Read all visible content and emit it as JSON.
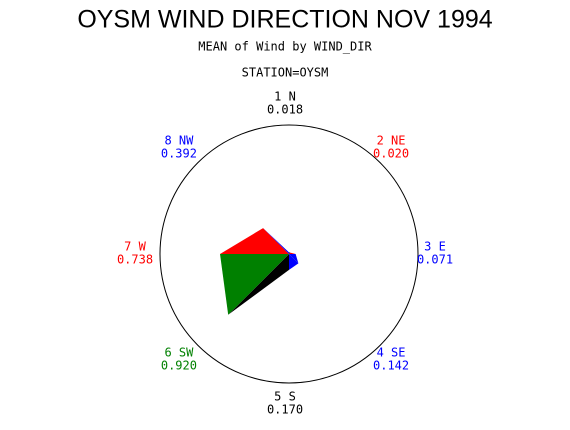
{
  "chart_data": {
    "type": "star",
    "title": "OYSM WIND DIRECTION NOV 1994",
    "subtitle": "MEAN of Wind by WIND_DIR",
    "group_label": "STATION=OYSM",
    "categories": [
      "1 N",
      "2 NE",
      "3 E",
      "4 SE",
      "5 S",
      "6 SW",
      "7 W",
      "8 NW"
    ],
    "values": [
      0.018,
      0.02,
      0.071,
      0.142,
      0.17,
      0.92,
      0.738,
      0.392
    ],
    "value_labels": [
      "0.018",
      "0.020",
      "0.071",
      "0.142",
      "0.170",
      "0.920",
      "0.738",
      "0.392"
    ],
    "colors": [
      "#000000",
      "#ff0000",
      "#0000ff",
      "#0000ff",
      "#000000",
      "#008000",
      "#ff0000",
      "#0000ff"
    ]
  }
}
